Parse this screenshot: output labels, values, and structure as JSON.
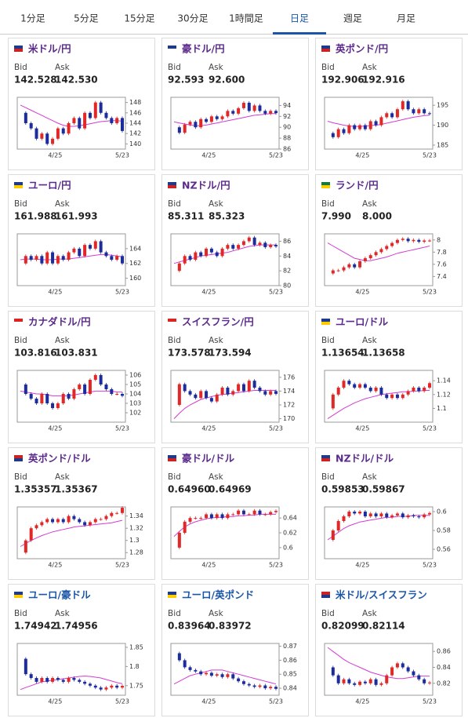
{
  "tabs": [
    "1分足",
    "5分足",
    "15分足",
    "30分足",
    "1時間足",
    "日足",
    "週足",
    "月足"
  ],
  "active_tab": 5,
  "labels": {
    "bid": "Bid",
    "ask": "Ask"
  },
  "x_labels": [
    "4/25",
    "5/23"
  ],
  "candle_colors": {
    "up": "#e02828",
    "down": "#1c2c9c"
  },
  "ma_color": "#d23cd2",
  "panels": [
    {
      "title": "米ドル/円",
      "title_color": "#5b2a8c",
      "bid": "142.528",
      "ask": "142.530",
      "ylim": [
        139,
        149
      ],
      "yticks": [
        140,
        142,
        144,
        146,
        148
      ],
      "closes": [
        146,
        144,
        143,
        141,
        142,
        140,
        141,
        143,
        142,
        144,
        145,
        143,
        146,
        145,
        148,
        146,
        145,
        144,
        145,
        142.5
      ],
      "ma": [
        147.5,
        147,
        146.5,
        146,
        145.5,
        145,
        144.5,
        144,
        143.6,
        143.4,
        143.4,
        143.5,
        143.7,
        143.9,
        144.1,
        144.3,
        144.4,
        144.5,
        144.5,
        144.4
      ]
    },
    {
      "title": "豪ドル/円",
      "title_color": "#5b2a8c",
      "bid": "92.593",
      "ask": "92.600",
      "ylim": [
        86,
        95.5
      ],
      "yticks": [
        86,
        88,
        90,
        92,
        94
      ],
      "closes": [
        90,
        89,
        90.5,
        91,
        90,
        91.5,
        91,
        92,
        91.5,
        92,
        93,
        92.5,
        93.5,
        94.5,
        93,
        94,
        93,
        92.5,
        93,
        92.6
      ],
      "ma": [
        91,
        90.8,
        90.6,
        90.4,
        90.3,
        90.3,
        90.4,
        90.6,
        90.8,
        91,
        91.2,
        91.4,
        91.6,
        91.8,
        92,
        92.2,
        92.3,
        92.4,
        92.5,
        92.5
      ]
    },
    {
      "title": "英ポンド/円",
      "title_color": "#5b2a8c",
      "bid": "192.906",
      "ask": "192.916",
      "ylim": [
        184,
        197
      ],
      "yticks": [
        185,
        190,
        195
      ],
      "closes": [
        188,
        187,
        189,
        188,
        190,
        189,
        190,
        189,
        191,
        190,
        192,
        193,
        192,
        194,
        196,
        194,
        193,
        194,
        193,
        192.9
      ],
      "ma": [
        191,
        190.6,
        190.3,
        190,
        189.8,
        189.7,
        189.7,
        189.8,
        189.9,
        190,
        190.2,
        190.5,
        190.8,
        191.1,
        191.4,
        191.7,
        192,
        192.2,
        192.4,
        192.5
      ]
    },
    {
      "title": "ユーロ/円",
      "title_color": "#5b2a8c",
      "bid": "161.988",
      "ask": "161.993",
      "ylim": [
        159,
        166
      ],
      "yticks": [
        160,
        162,
        164
      ],
      "closes": [
        162,
        163,
        162.5,
        163,
        162,
        163.5,
        162,
        163,
        162.5,
        163.5,
        164,
        163,
        164.5,
        164,
        165,
        163.5,
        163,
        162.5,
        163,
        162
      ],
      "ma": [
        162.5,
        162.6,
        162.6,
        162.6,
        162.5,
        162.5,
        162.5,
        162.6,
        162.6,
        162.6,
        162.7,
        162.8,
        162.9,
        163,
        163.1,
        163.2,
        163.2,
        163.1,
        163,
        162.9
      ]
    },
    {
      "title": "NZドル/円",
      "title_color": "#5b2a8c",
      "bid": "85.311",
      "ask": "85.323",
      "ylim": [
        80,
        87
      ],
      "yticks": [
        80,
        82,
        84,
        86
      ],
      "closes": [
        82,
        83,
        84,
        83.5,
        84.5,
        84,
        85,
        84.5,
        84,
        85,
        85.5,
        85,
        85.5,
        86,
        86.5,
        85.5,
        85.8,
        85.2,
        85.5,
        85.3
      ],
      "ma": [
        83,
        83.2,
        83.4,
        83.6,
        83.8,
        84,
        84.1,
        84.2,
        84.3,
        84.4,
        84.5,
        84.7,
        84.9,
        85.1,
        85.3,
        85.4,
        85.5,
        85.5,
        85.5,
        85.5
      ]
    },
    {
      "title": "ランド/円",
      "title_color": "#5b2a8c",
      "bid": "7.990",
      "ask": "8.000",
      "ylim": [
        7.25,
        8.1
      ],
      "yticks": [
        7.4,
        7.6,
        7.8,
        8
      ],
      "closes": [
        7.45,
        7.5,
        7.5,
        7.55,
        7.6,
        7.55,
        7.65,
        7.7,
        7.75,
        7.8,
        7.85,
        7.9,
        7.95,
        8,
        8.02,
        7.98,
        8,
        7.97,
        7.99,
        7.99
      ],
      "ma": [
        7.95,
        7.9,
        7.85,
        7.8,
        7.75,
        7.7,
        7.68,
        7.66,
        7.66,
        7.68,
        7.7,
        7.72,
        7.75,
        7.78,
        7.8,
        7.82,
        7.84,
        7.86,
        7.88,
        7.9
      ]
    },
    {
      "title": "カナダドル/円",
      "title_color": "#5b2a8c",
      "bid": "103.816",
      "ask": "103.831",
      "ylim": [
        101,
        106.5
      ],
      "yticks": [
        102,
        103,
        104,
        105,
        106
      ],
      "closes": [
        105,
        104,
        103.5,
        103,
        104,
        103,
        102.5,
        103,
        104,
        103.5,
        104.5,
        105,
        104,
        105.5,
        106,
        105,
        104.5,
        104,
        104,
        103.8
      ],
      "ma": [
        104.3,
        104.2,
        104.1,
        104,
        104,
        103.9,
        103.8,
        103.8,
        103.8,
        103.8,
        103.9,
        104,
        104.1,
        104.2,
        104.3,
        104.3,
        104.3,
        104.3,
        104.2,
        104.2
      ]
    },
    {
      "title": "スイスフラン/円",
      "title_color": "#5b2a8c",
      "bid": "173.578",
      "ask": "173.594",
      "ylim": [
        169.5,
        177
      ],
      "yticks": [
        170,
        172,
        174,
        176
      ],
      "closes": [
        172,
        175,
        174,
        173.5,
        173,
        174,
        173,
        172.5,
        173.5,
        174.5,
        173.5,
        174,
        175,
        174,
        175.5,
        174.5,
        174,
        173.5,
        174,
        173.6
      ],
      "ma": [
        170,
        170.8,
        171.5,
        172,
        172.4,
        172.8,
        173,
        173.2,
        173.4,
        173.5,
        173.6,
        173.7,
        173.8,
        173.9,
        174,
        174.1,
        174.1,
        174.1,
        174.1,
        174.1
      ]
    },
    {
      "title": "ユーロ/ドル",
      "title_color": "#5b2a8c",
      "bid": "1.13654",
      "ask": "1.13658",
      "ylim": [
        1.08,
        1.155
      ],
      "yticks": [
        1.1,
        1.12,
        1.14
      ],
      "closes": [
        1.1,
        1.12,
        1.13,
        1.14,
        1.135,
        1.13,
        1.135,
        1.13,
        1.125,
        1.13,
        1.12,
        1.115,
        1.12,
        1.115,
        1.12,
        1.125,
        1.13,
        1.125,
        1.13,
        1.1365
      ],
      "ma": [
        1.085,
        1.09,
        1.095,
        1.1,
        1.104,
        1.108,
        1.111,
        1.114,
        1.116,
        1.118,
        1.12,
        1.121,
        1.122,
        1.123,
        1.124,
        1.124,
        1.125,
        1.125,
        1.126,
        1.126
      ]
    },
    {
      "title": "英ポンド/ドル",
      "title_color": "#5b2a8c",
      "bid": "1.35357",
      "ask": "1.35367",
      "ylim": [
        1.27,
        1.355
      ],
      "yticks": [
        1.28,
        1.3,
        1.32,
        1.34
      ],
      "closes": [
        1.28,
        1.3,
        1.32,
        1.325,
        1.33,
        1.335,
        1.33,
        1.335,
        1.33,
        1.34,
        1.335,
        1.33,
        1.325,
        1.33,
        1.335,
        1.335,
        1.34,
        1.345,
        1.345,
        1.3536
      ],
      "ma": [
        1.29,
        1.295,
        1.3,
        1.304,
        1.308,
        1.311,
        1.314,
        1.316,
        1.318,
        1.32,
        1.322,
        1.323,
        1.324,
        1.325,
        1.326,
        1.327,
        1.328,
        1.329,
        1.331,
        1.333
      ]
    },
    {
      "title": "豪ドル/ドル",
      "title_color": "#5b2a8c",
      "bid": "0.64960",
      "ask": "0.64969",
      "ylim": [
        0.585,
        0.655
      ],
      "yticks": [
        0.6,
        0.62,
        0.64
      ],
      "closes": [
        0.6,
        0.62,
        0.635,
        0.64,
        0.64,
        0.64,
        0.645,
        0.64,
        0.645,
        0.64,
        0.645,
        0.645,
        0.65,
        0.645,
        0.645,
        0.65,
        0.645,
        0.645,
        0.648,
        0.6496
      ],
      "ma": [
        0.615,
        0.622,
        0.628,
        0.632,
        0.635,
        0.637,
        0.639,
        0.64,
        0.641,
        0.641,
        0.642,
        0.642,
        0.643,
        0.643,
        0.644,
        0.644,
        0.645,
        0.645,
        0.645,
        0.645
      ]
    },
    {
      "title": "NZドル/ドル",
      "title_color": "#5b2a8c",
      "bid": "0.59853",
      "ask": "0.59867",
      "ylim": [
        0.55,
        0.605
      ],
      "yticks": [
        0.56,
        0.58,
        0.6
      ],
      "closes": [
        0.57,
        0.58,
        0.59,
        0.595,
        0.6,
        0.598,
        0.6,
        0.595,
        0.598,
        0.595,
        0.598,
        0.594,
        0.596,
        0.598,
        0.594,
        0.596,
        0.595,
        0.594,
        0.597,
        0.5985
      ],
      "ma": [
        0.57,
        0.574,
        0.578,
        0.582,
        0.585,
        0.587,
        0.589,
        0.59,
        0.591,
        0.592,
        0.593,
        0.594,
        0.594,
        0.595,
        0.595,
        0.595,
        0.596,
        0.596,
        0.596,
        0.596
      ]
    },
    {
      "title": "ユーロ/豪ドル",
      "title_color": "#1a56a8",
      "bid": "1.74942",
      "ask": "1.74956",
      "ylim": [
        1.725,
        1.86
      ],
      "yticks": [
        1.75,
        1.8,
        1.85
      ],
      "closes": [
        1.82,
        1.78,
        1.77,
        1.76,
        1.77,
        1.76,
        1.77,
        1.765,
        1.76,
        1.77,
        1.765,
        1.76,
        1.755,
        1.75,
        1.745,
        1.74,
        1.745,
        1.75,
        1.745,
        1.7494
      ],
      "ma": [
        1.74,
        1.745,
        1.75,
        1.755,
        1.76,
        1.762,
        1.764,
        1.766,
        1.768,
        1.77,
        1.772,
        1.774,
        1.775,
        1.774,
        1.772,
        1.77,
        1.766,
        1.762,
        1.758,
        1.755
      ]
    },
    {
      "title": "ユーロ/英ポンド",
      "title_color": "#1a56a8",
      "bid": "0.83964",
      "ask": "0.83972",
      "ylim": [
        0.835,
        0.872
      ],
      "yticks": [
        0.84,
        0.85,
        0.86,
        0.87
      ],
      "closes": [
        0.865,
        0.86,
        0.855,
        0.853,
        0.852,
        0.85,
        0.851,
        0.849,
        0.85,
        0.848,
        0.85,
        0.847,
        0.845,
        0.843,
        0.842,
        0.841,
        0.842,
        0.84,
        0.841,
        0.8396
      ],
      "ma": [
        0.843,
        0.845,
        0.847,
        0.849,
        0.85,
        0.851,
        0.852,
        0.853,
        0.853,
        0.853,
        0.852,
        0.851,
        0.85,
        0.849,
        0.848,
        0.847,
        0.846,
        0.845,
        0.844,
        0.843
      ]
    },
    {
      "title": "米ドル/スイスフラン",
      "title_color": "#1a56a8",
      "bid": "0.82099",
      "ask": "0.82114",
      "ylim": [
        0.805,
        0.87
      ],
      "yticks": [
        0.82,
        0.84,
        0.86
      ],
      "closes": [
        0.84,
        0.83,
        0.82,
        0.825,
        0.82,
        0.818,
        0.822,
        0.82,
        0.825,
        0.818,
        0.82,
        0.83,
        0.84,
        0.845,
        0.84,
        0.835,
        0.83,
        0.825,
        0.82,
        0.821
      ],
      "ma": [
        0.865,
        0.86,
        0.855,
        0.85,
        0.846,
        0.843,
        0.84,
        0.837,
        0.834,
        0.832,
        0.83,
        0.828,
        0.827,
        0.826,
        0.826,
        0.827,
        0.828,
        0.829,
        0.829,
        0.829
      ]
    }
  ]
}
